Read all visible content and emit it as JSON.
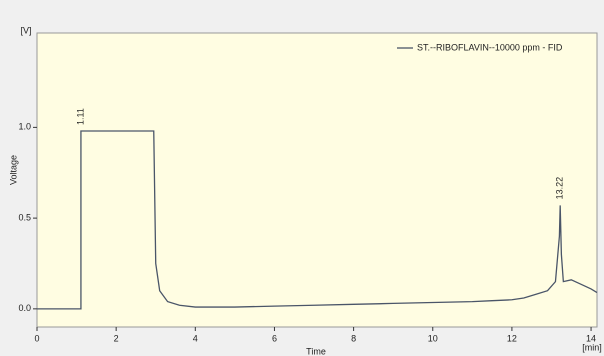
{
  "chart_data": {
    "type": "line",
    "ylabel": "Voltage",
    "xlabel": "Time",
    "xunit": "[min]",
    "yunit": "[V]",
    "x": [
      0,
      1.11,
      1.11,
      2.9,
      2.95,
      3.0,
      3.1,
      3.3,
      3.6,
      4,
      5,
      6,
      7,
      8,
      9,
      10,
      11,
      11.5,
      12,
      12.3,
      12.6,
      12.9,
      13.1,
      13.2,
      13.22,
      13.25,
      13.3,
      13.5,
      13.7,
      14,
      14.15
    ],
    "series": [
      {
        "name": "ST.--RIBOFLAVIN--10000 ppm - FID",
        "color": "#4a5568",
        "values": [
          0,
          0,
          0.98,
          0.98,
          0.98,
          0.25,
          0.1,
          0.04,
          0.02,
          0.01,
          0.01,
          0.015,
          0.02,
          0.025,
          0.03,
          0.035,
          0.04,
          0.045,
          0.05,
          0.06,
          0.08,
          0.1,
          0.15,
          0.4,
          0.57,
          0.3,
          0.15,
          0.16,
          0.14,
          0.11,
          0.09
        ]
      }
    ],
    "annotations": [
      {
        "x": 1.11,
        "y": 0.98
      },
      {
        "x": 13.22,
        "y": 0.57
      }
    ],
    "xlim": [
      0,
      14.15
    ],
    "ylim": [
      -0.1,
      1.52
    ],
    "xticks": [
      0,
      2,
      4,
      6,
      8,
      10,
      12,
      14
    ],
    "yticks": [
      {
        "value": 0,
        "label": "0.0"
      },
      0.5,
      {
        "value": 1,
        "label": "1.0"
      }
    ],
    "legend": "top-right",
    "background": "#fffde2"
  }
}
